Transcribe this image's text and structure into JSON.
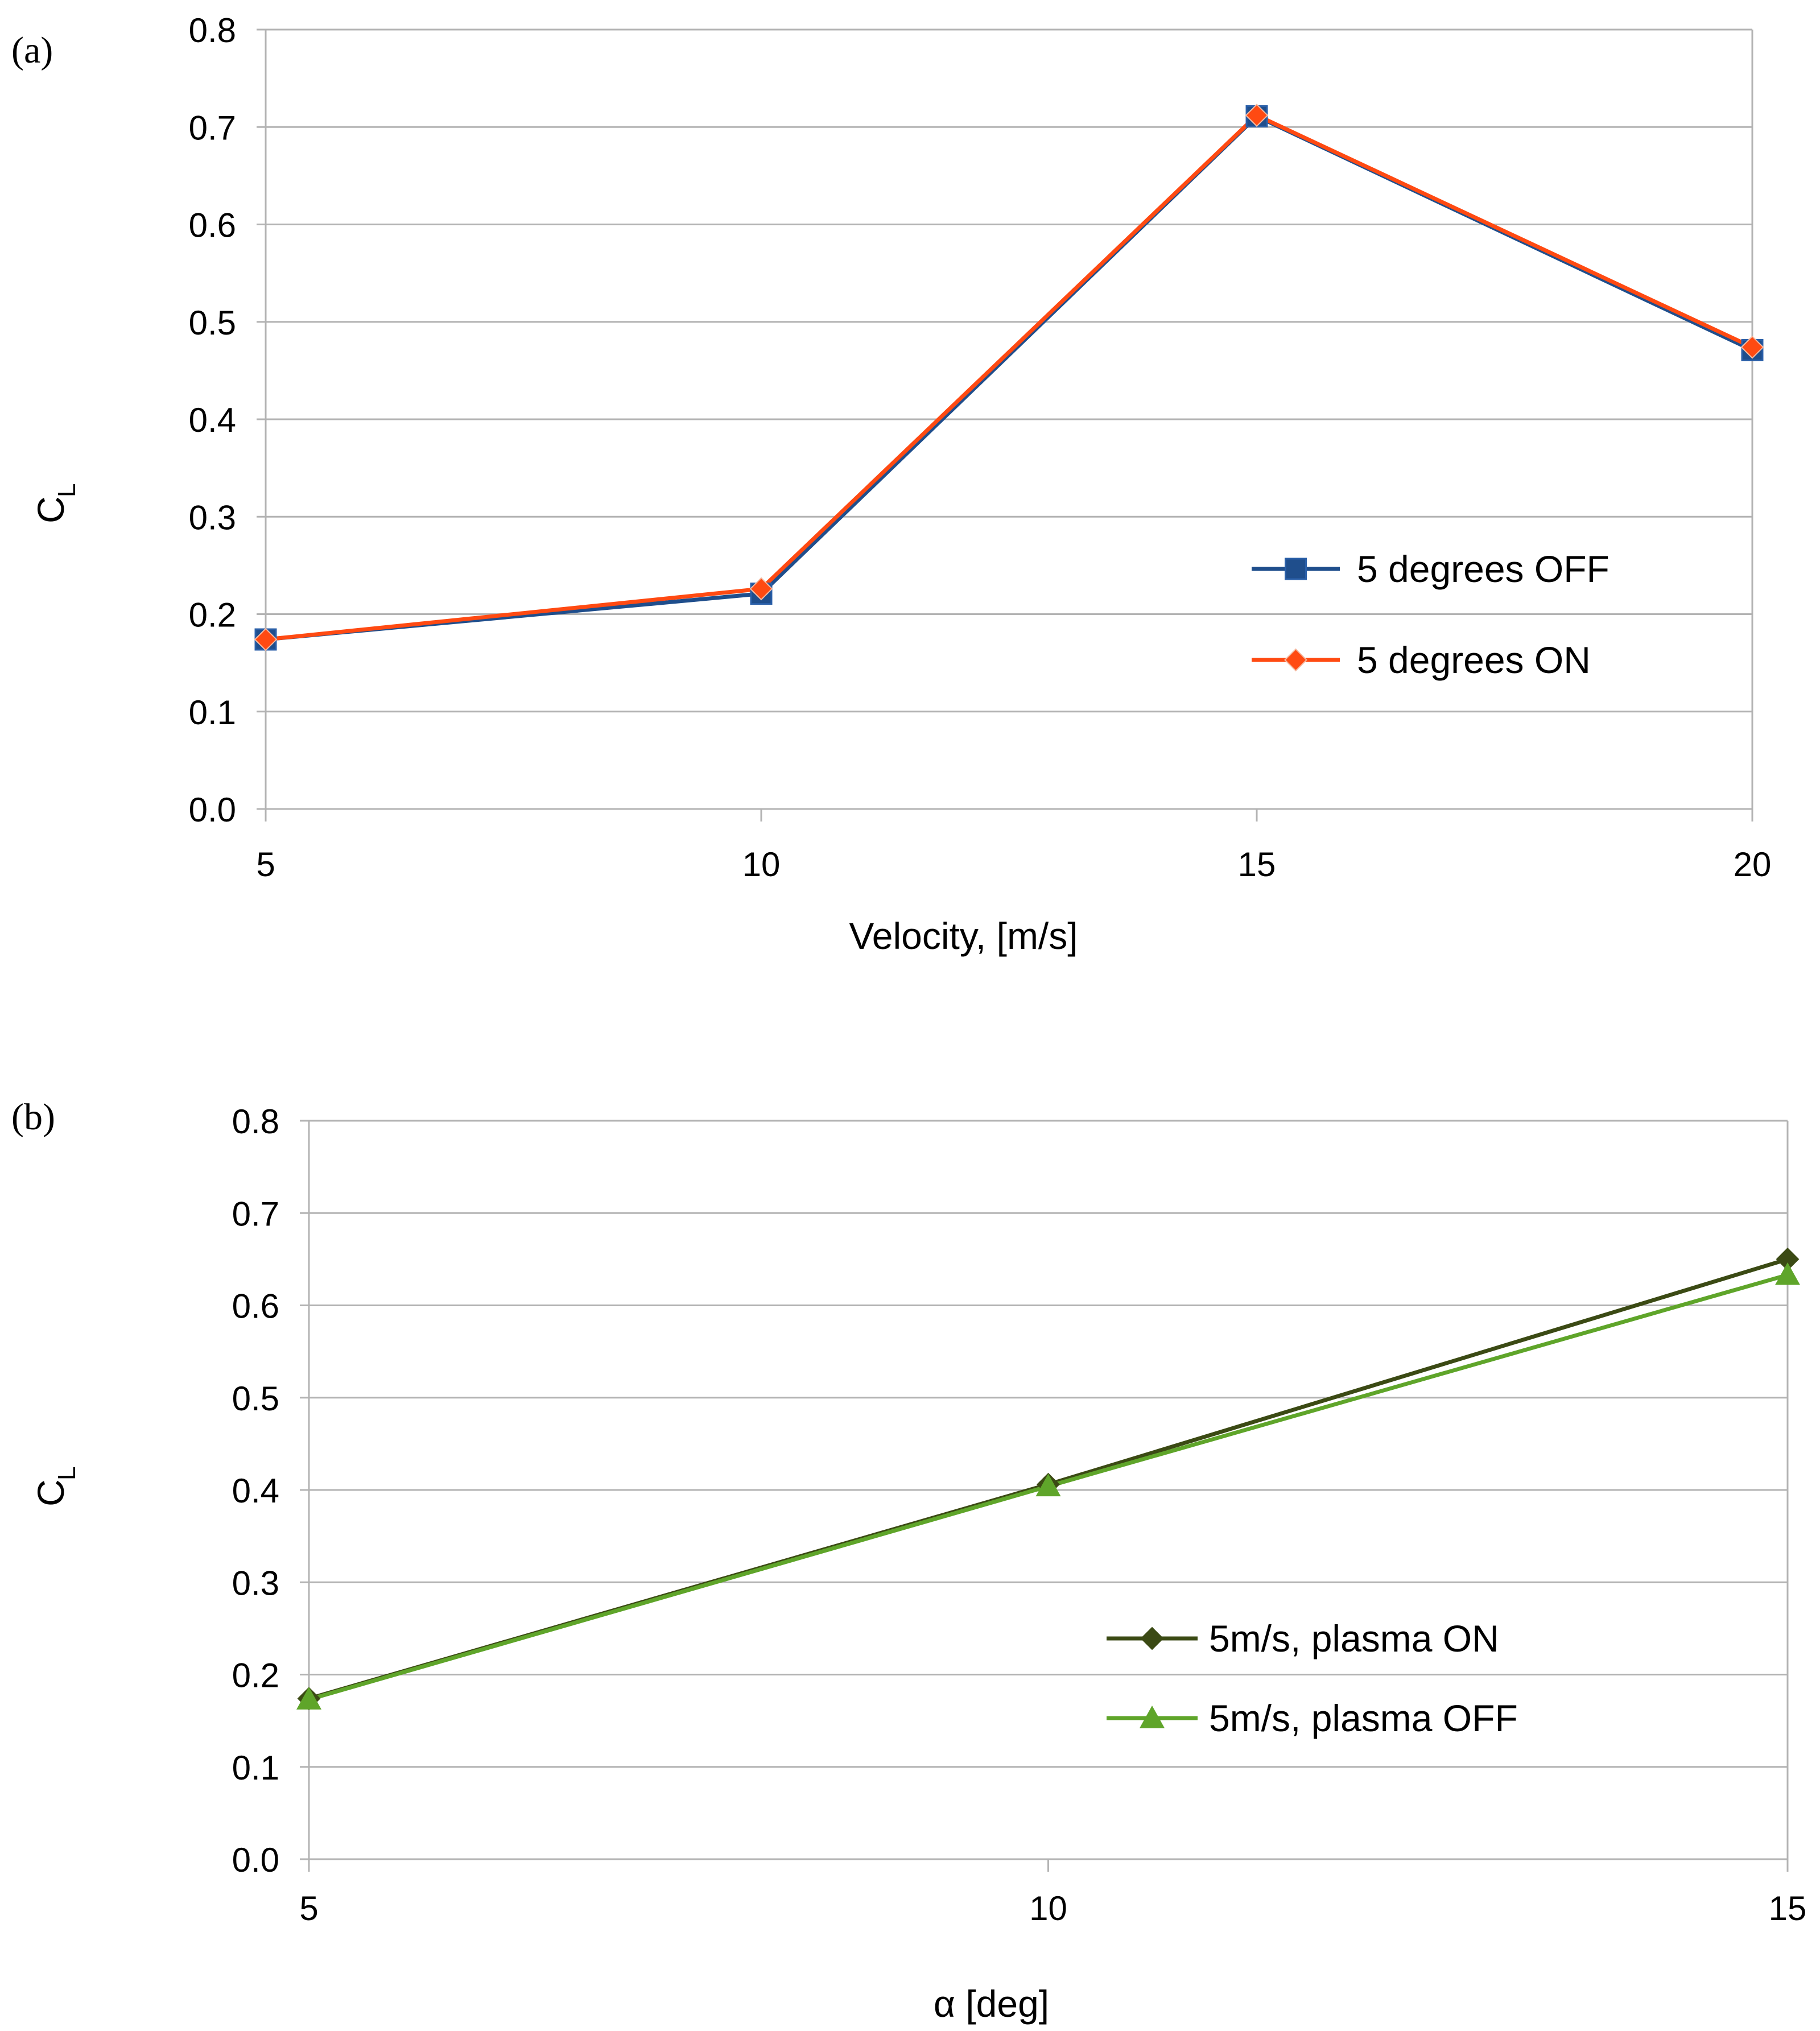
{
  "chart_data": [
    {
      "type": "line",
      "panel_label": "(a)",
      "x": [
        5,
        10,
        15,
        20
      ],
      "x_ticks": [
        "5",
        "10",
        "15",
        "20"
      ],
      "xlim": [
        5,
        20
      ],
      "y_ticks": [
        "0.0",
        "0.1",
        "0.2",
        "0.3",
        "0.4",
        "0.5",
        "0.6",
        "0.7",
        "0.8"
      ],
      "ylim": [
        0,
        0.8
      ],
      "xlabel": "Velocity, [m/s]",
      "ylabel_main": "C",
      "ylabel_sub": "L",
      "grid": "horizontal",
      "legend_position": "right-middle",
      "series": [
        {
          "name": "5 degrees OFF",
          "values": [
            0.174,
            0.221,
            0.711,
            0.471
          ],
          "color": "#1F4E8C",
          "marker": "square"
        },
        {
          "name": "5 degrees ON",
          "values": [
            0.174,
            0.226,
            0.712,
            0.474
          ],
          "color": "#FF4A12",
          "marker": "diamond"
        }
      ]
    },
    {
      "type": "line",
      "panel_label": "(b)",
      "x": [
        5,
        10,
        15
      ],
      "x_ticks": [
        "5",
        "10",
        "15"
      ],
      "xlim": [
        5,
        15
      ],
      "y_ticks": [
        "0.0",
        "0.1",
        "0.2",
        "0.3",
        "0.4",
        "0.5",
        "0.6",
        "0.7",
        "0.8"
      ],
      "ylim": [
        0,
        0.8
      ],
      "xlabel": "α [deg]",
      "ylabel_main": "C",
      "ylabel_sub": "L",
      "grid": "horizontal",
      "legend_position": "right-lower",
      "series": [
        {
          "name": "5m/s, plasma ON",
          "values": [
            0.174,
            0.406,
            0.65
          ],
          "color": "#3B4A14",
          "marker": "diamond"
        },
        {
          "name": "5m/s, plasma OFF",
          "values": [
            0.173,
            0.404,
            0.633
          ],
          "color": "#5FA52A",
          "marker": "triangle"
        }
      ]
    }
  ]
}
